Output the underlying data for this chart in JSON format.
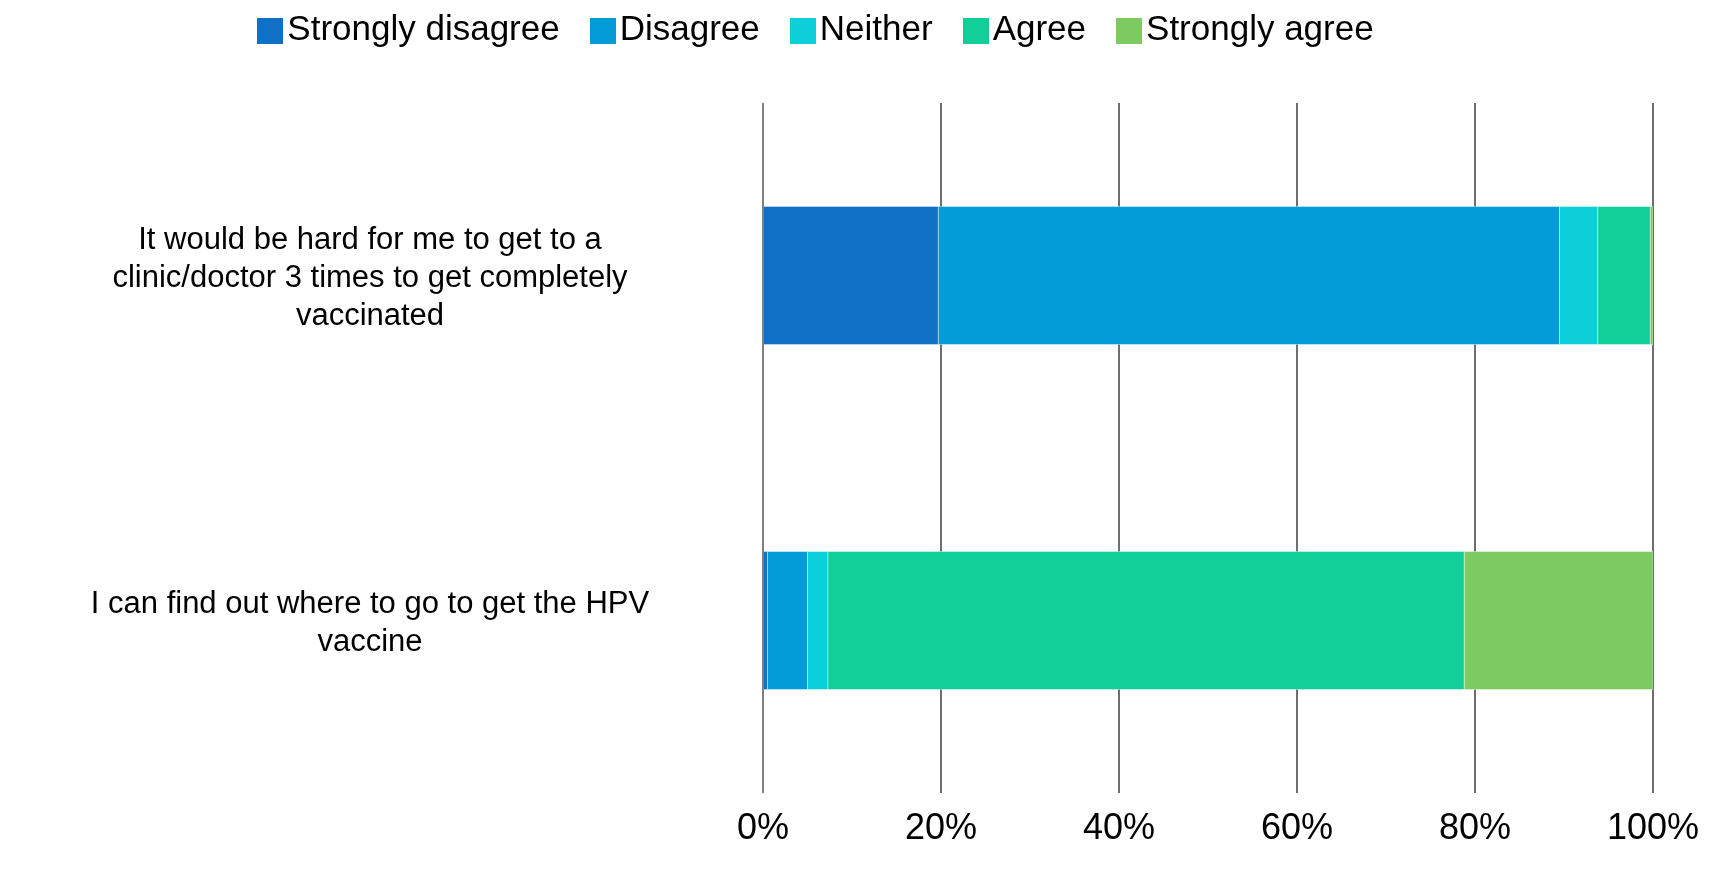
{
  "chart_data": {
    "type": "bar",
    "orientation": "horizontal",
    "stacked": true,
    "categories": [
      "It would be hard for me to get to a clinic/doctor 3 times to get completely vaccinated",
      "I can find out where to go to get the HPV vaccine"
    ],
    "series": [
      {
        "name": "Strongly disagree",
        "color": "#0f70c5",
        "values": [
          19.7,
          0.5
        ]
      },
      {
        "name": "Disagree",
        "color": "#039cd6",
        "values": [
          69.8,
          4.5
        ]
      },
      {
        "name": "Neither",
        "color": "#0dcfd9",
        "values": [
          4.3,
          2.3
        ]
      },
      {
        "name": "Agree",
        "color": "#12cf9a",
        "values": [
          5.9,
          71.5
        ]
      },
      {
        "name": "Strongly agree",
        "color": "#7dca63",
        "values": [
          0.3,
          21.2
        ]
      }
    ],
    "xlim": [
      0,
      100
    ],
    "xticks": [
      {
        "value": 0,
        "label": "0%"
      },
      {
        "value": 20,
        "label": "20%"
      },
      {
        "value": 40,
        "label": "40%"
      },
      {
        "value": 60,
        "label": "60%"
      },
      {
        "value": 80,
        "label": "80%"
      },
      {
        "value": 100,
        "label": "100%"
      }
    ],
    "grid": "x",
    "legend": "top"
  }
}
